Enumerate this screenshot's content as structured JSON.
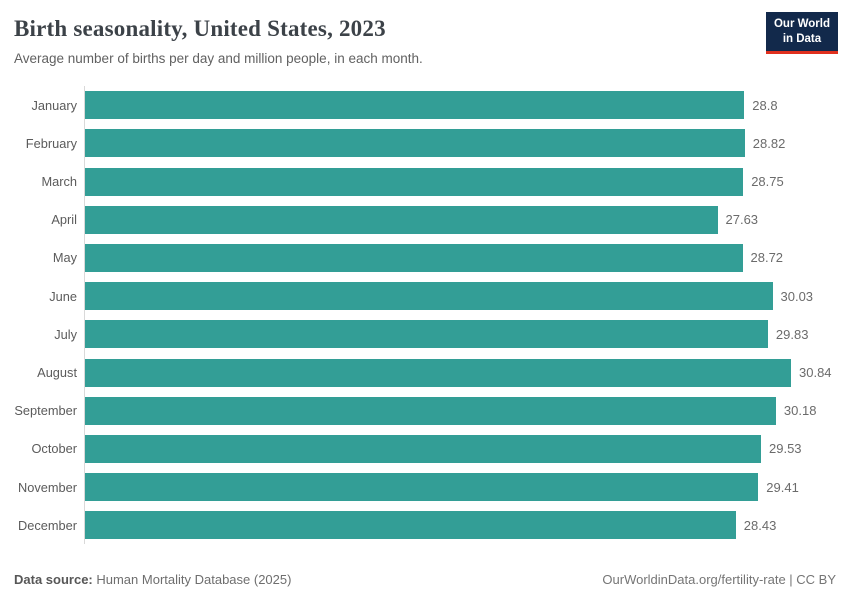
{
  "header": {
    "title": "Birth seasonality, United States, 2023",
    "subtitle": "Average number of births per day and million people, in each month.",
    "logo": {
      "line1": "Our World",
      "line2": "in Data",
      "bg_color": "#12294b",
      "accent_color": "#e0301e"
    }
  },
  "chart_data": {
    "type": "bar",
    "orientation": "horizontal",
    "title": "Birth seasonality, United States, 2023",
    "subtitle": "Average number of births per day and million people, in each month.",
    "categories": [
      "January",
      "February",
      "March",
      "April",
      "May",
      "June",
      "July",
      "August",
      "September",
      "October",
      "November",
      "December"
    ],
    "values": [
      28.8,
      28.82,
      28.75,
      27.63,
      28.72,
      30.03,
      29.83,
      30.84,
      30.18,
      29.53,
      29.41,
      28.43
    ],
    "value_labels": [
      "28.8",
      "28.82",
      "28.75",
      "27.63",
      "28.72",
      "30.03",
      "29.83",
      "30.84",
      "30.18",
      "29.53",
      "29.41",
      "28.43"
    ],
    "bar_color": "#339e96",
    "axis_line_color": "#d9d9d9",
    "xlim": [
      0,
      30.84
    ],
    "grid": false,
    "legend": "none",
    "xlabel": "",
    "ylabel": ""
  },
  "footer": {
    "source_label": "Data source:",
    "source_value": " Human Mortality Database (2025)",
    "credit": "OurWorldinData.org/fertility-rate | CC BY"
  }
}
